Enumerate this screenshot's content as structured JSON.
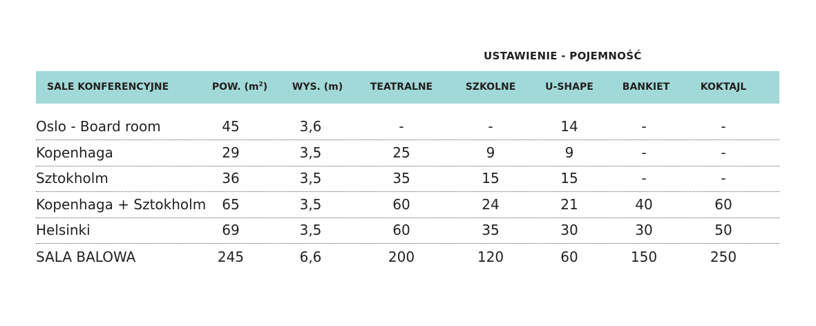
{
  "table": {
    "group_header": "USTAWIENIE - POJEMNOŚĆ",
    "headers": {
      "name": "SALE KONFERENCYJNE",
      "area": "POW. (m",
      "area_sup": "2",
      "area_close": ")",
      "height": "WYS. (m)",
      "theatre": "TEATRALNE",
      "school": "SZKOLNE",
      "ushape": "U-SHAPE",
      "banquet": "BANKIET",
      "cocktail": "KOKTAJL"
    },
    "rows": [
      {
        "name": "Oslo - Board room",
        "area": "45",
        "height": "3,6",
        "theatre": "-",
        "school": "-",
        "ushape": "14",
        "banquet": "-",
        "cocktail": "-"
      },
      {
        "name": "Kopenhaga",
        "area": "29",
        "height": "3,5",
        "theatre": "25",
        "school": "9",
        "ushape": "9",
        "banquet": "-",
        "cocktail": "-"
      },
      {
        "name": "Sztokholm",
        "area": "36",
        "height": "3,5",
        "theatre": "35",
        "school": "15",
        "ushape": "15",
        "banquet": "-",
        "cocktail": "-"
      },
      {
        "name": "Kopenhaga + Sztokholm",
        "area": "65",
        "height": "3,5",
        "theatre": "60",
        "school": "24",
        "ushape": "21",
        "banquet": "40",
        "cocktail": "60"
      },
      {
        "name": "Helsinki",
        "area": "69",
        "height": "3,5",
        "theatre": "60",
        "school": "35",
        "ushape": "30",
        "banquet": "30",
        "cocktail": "50"
      },
      {
        "name": "SALA BALOWA",
        "area": "245",
        "height": "6,6",
        "theatre": "200",
        "school": "120",
        "ushape": "60",
        "banquet": "150",
        "cocktail": "250"
      }
    ]
  }
}
